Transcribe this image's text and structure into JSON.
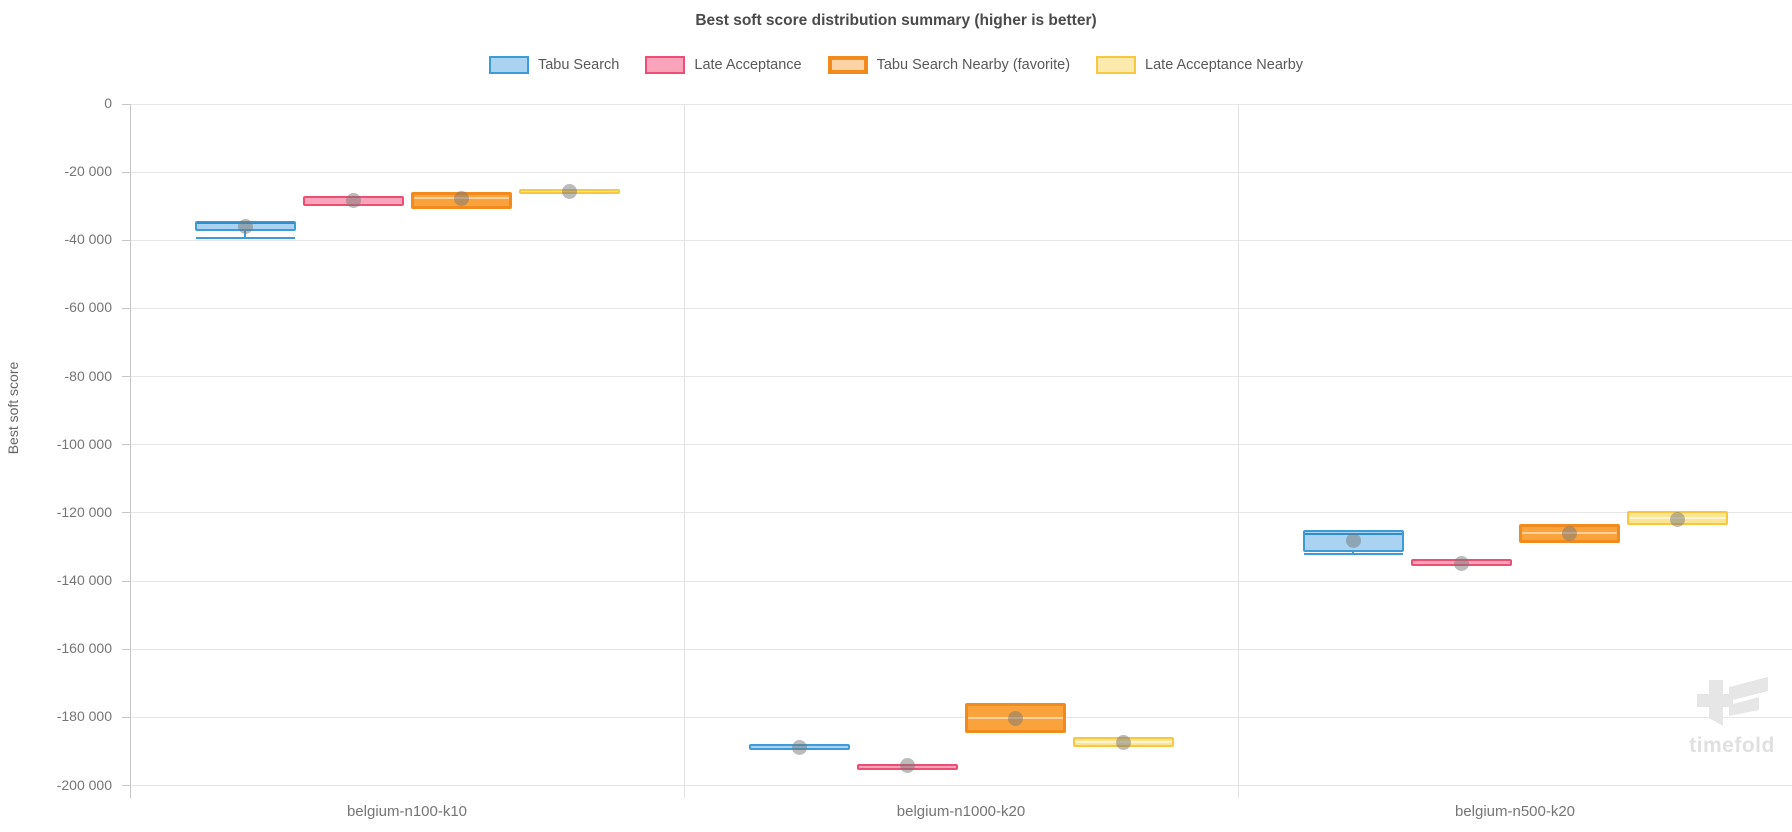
{
  "title": "Best soft score distribution summary (higher is better)",
  "watermark": {
    "text": "timefold",
    "color": "#e0e0e0",
    "logo_color": "#e6e6e6"
  },
  "axis_colors": {
    "grid": "#e6e6e6",
    "axis_line": "#c6c6c6",
    "tick_text": "#757575"
  },
  "chart_data": {
    "type": "boxplot",
    "title": "Best soft score distribution summary (higher is better)",
    "xlabel": "",
    "ylabel": "Best soft score",
    "ylim": [
      -200000,
      0
    ],
    "grid": true,
    "legend_position": "top",
    "categories": [
      "belgium-n100-k10",
      "belgium-n1000-k20",
      "belgium-n500-k20"
    ],
    "y_ticks": [
      {
        "label": "0",
        "value": 0
      },
      {
        "label": "-20 000",
        "value": -20000
      },
      {
        "label": "-40 000",
        "value": -40000
      },
      {
        "label": "-60 000",
        "value": -60000
      },
      {
        "label": "-80 000",
        "value": -80000
      },
      {
        "label": "-100 000",
        "value": -100000
      },
      {
        "label": "-120 000",
        "value": -120000
      },
      {
        "label": "-140 000",
        "value": -140000
      },
      {
        "label": "-160 000",
        "value": -160000
      },
      {
        "label": "-180 000",
        "value": -180000
      },
      {
        "label": "-200 000",
        "value": -200000
      }
    ],
    "mean_marker_color": "rgba(120,120,120,0.5)",
    "series": [
      {
        "name": "Tabu Search",
        "fill": "#a9d3f0",
        "border": "#3d9cd6",
        "legend_fill": "#a9d3f0",
        "median_color": "#2e8fcc",
        "border_width": 2,
        "boxes": [
          {
            "min": -39400,
            "q1": -37400,
            "median": -35000,
            "q3": -34200,
            "max": -34200,
            "mean": -35900
          },
          {
            "min": -189600,
            "q1": -189600,
            "median": -188700,
            "q3": -187900,
            "max": -187900,
            "mean": -188800
          },
          {
            "min": -132200,
            "q1": -131400,
            "median": -126300,
            "q3": -125000,
            "max": -125000,
            "mean": -128000
          }
        ]
      },
      {
        "name": "Late Acceptance",
        "fill": "#f9a4ba",
        "border": "#ee4d74",
        "legend_fill": "#f9a4ba",
        "median_color": "rgba(255,255,255,0.55)",
        "border_width": 2,
        "boxes": [
          {
            "min": -29800,
            "q1": -29800,
            "median": -28600,
            "q3": -27100,
            "max": -27100,
            "mean": -28300
          },
          {
            "min": -194300,
            "q1": -194300,
            "median": -194000,
            "q3": -193800,
            "max": -193800,
            "mean": -194000
          },
          {
            "min": -135600,
            "q1": -135600,
            "median": -134700,
            "q3": -133600,
            "max": -133600,
            "mean": -134800
          }
        ]
      },
      {
        "name": "Tabu Search Nearby (favorite)",
        "fill": "#faa23c",
        "border": "#f28b1e",
        "legend_fill": "#fbd3a5",
        "median_color": "rgba(255,255,255,0.5)",
        "border_width": 3,
        "boxes": [
          {
            "min": -30800,
            "q1": -30800,
            "median": -27700,
            "q3": -25900,
            "max": -25900,
            "mean": -27800
          },
          {
            "min": -184500,
            "q1": -184500,
            "median": -180200,
            "q3": -175900,
            "max": -175900,
            "mean": -180400
          },
          {
            "min": -128800,
            "q1": -128800,
            "median": -126000,
            "q3": -123400,
            "max": -123400,
            "mean": -126100
          }
        ]
      },
      {
        "name": "Late Acceptance Nearby",
        "fill": "#fbe492",
        "border": "#f7c73f",
        "legend_fill": "#fce9ac",
        "median_color": "rgba(255,255,255,0.6)",
        "border_width": 2,
        "boxes": [
          {
            "min": -26300,
            "q1": -26300,
            "median": -25600,
            "q3": -24900,
            "max": -24900,
            "mean": -25700
          },
          {
            "min": -188800,
            "q1": -188800,
            "median": -187200,
            "q3": -185700,
            "max": -185700,
            "mean": -187400
          },
          {
            "min": -123600,
            "q1": -123600,
            "median": -121600,
            "q3": -119400,
            "max": -119400,
            "mean": -121900
          }
        ]
      }
    ]
  }
}
